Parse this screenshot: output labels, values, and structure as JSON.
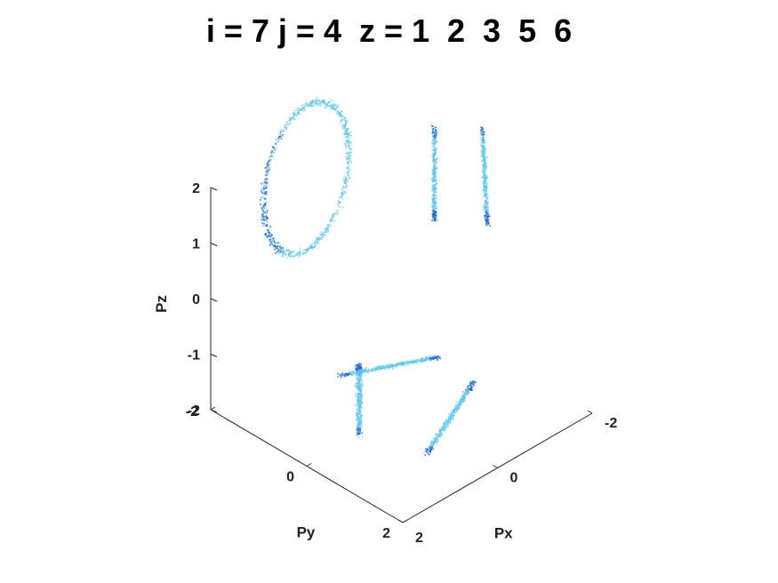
{
  "chart_data": {
    "type": "scatter",
    "title": "i = 7 j = 4  z = 1  2  3  5  6",
    "xlabel": "Px",
    "ylabel": "Py",
    "zlabel": "Pz",
    "xlim": [
      -2,
      2
    ],
    "ylim": [
      -2,
      2
    ],
    "zlim": [
      -2,
      2
    ],
    "x_ticks": [
      "-2",
      "0",
      "2"
    ],
    "y_ticks": [
      "-2",
      "0",
      "2"
    ],
    "z_ticks": [
      "-2",
      "-1",
      "0",
      "1",
      "2"
    ],
    "grid": false,
    "view": "3d",
    "point_colors": [
      "#5bc8f0",
      "#1f5fd6"
    ],
    "clusters": [
      {
        "name": "thin vertical strip",
        "projection": "Py-Pz",
        "shape": "line",
        "from": [
          -1.3,
          1.5
        ],
        "to": [
          -1.3,
          -0.2
        ]
      },
      {
        "name": "curved vertical strip",
        "projection": "Py-Pz",
        "shape": "line",
        "from": [
          -0.3,
          2.0
        ],
        "to": [
          -0.2,
          0.3
        ]
      },
      {
        "name": "ring",
        "projection": "Px-Pz",
        "shape": "ellipse",
        "center": [
          0.0,
          1.2
        ],
        "radii": [
          0.9,
          1.3
        ]
      },
      {
        "name": "floor streak 1",
        "projection": "Px-Py",
        "shape": "line",
        "from": [
          0.5,
          1.0
        ],
        "to": [
          -1.3,
          0.2
        ]
      },
      {
        "name": "floor streak 2",
        "projection": "Px-Py",
        "shape": "line",
        "from": [
          0.9,
          0.0
        ],
        "to": [
          -0.4,
          -1.3
        ]
      },
      {
        "name": "floor streak 3",
        "projection": "Px-Py",
        "shape": "line",
        "from": [
          0.0,
          -1.3
        ],
        "to": [
          -1.4,
          -0.6
        ]
      }
    ]
  }
}
